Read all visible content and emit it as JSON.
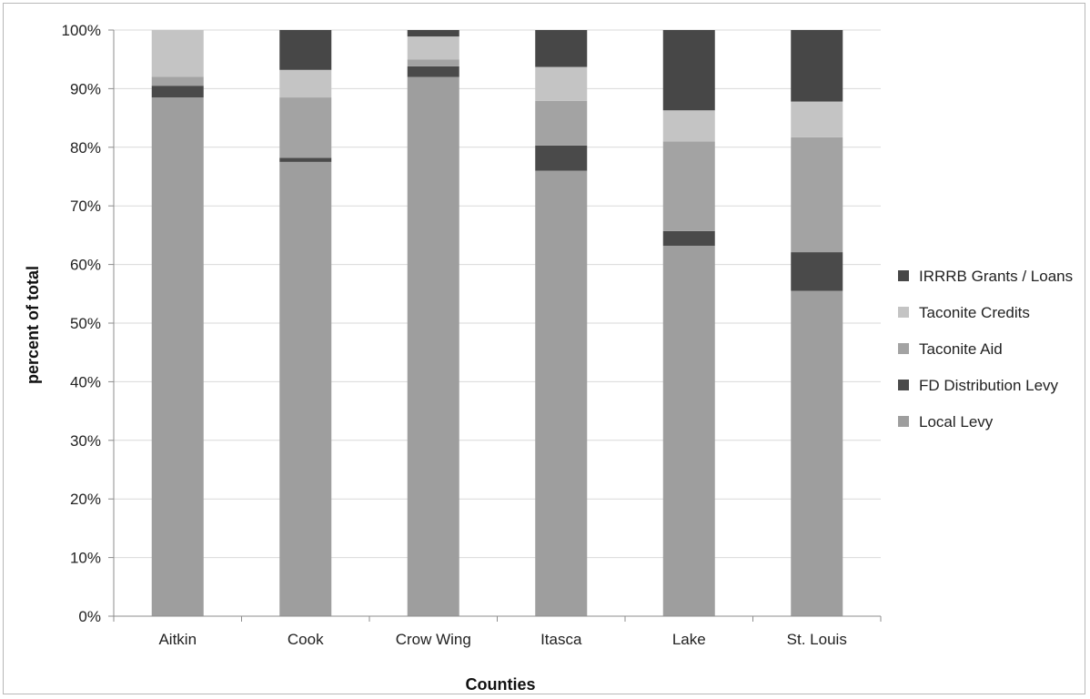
{
  "chart_data": {
    "type": "bar",
    "stacked": true,
    "percent": true,
    "categories": [
      "Aitkin",
      "Cook",
      "Crow Wing",
      "Itasca",
      "Lake",
      "St. Louis"
    ],
    "series": [
      {
        "name": "Local Levy",
        "color": "#9e9e9e",
        "values": [
          88.5,
          77.5,
          92.0,
          76.0,
          63.2,
          55.5
        ]
      },
      {
        "name": "FD Distribution Levy",
        "color": "#4a4a4a",
        "values": [
          2.0,
          0.7,
          1.8,
          4.3,
          2.5,
          6.6
        ]
      },
      {
        "name": "Taconite Aid",
        "color": "#a3a3a3",
        "values": [
          1.5,
          10.3,
          1.2,
          7.6,
          15.3,
          19.6
        ]
      },
      {
        "name": "Taconite Credits",
        "color": "#c4c4c4",
        "values": [
          8.0,
          4.7,
          3.9,
          5.8,
          5.3,
          6.1
        ]
      },
      {
        "name": "IRRRB Grants / Loans",
        "color": "#474747",
        "values": [
          0.0,
          6.8,
          1.1,
          6.3,
          13.7,
          12.2
        ]
      }
    ],
    "xlabel": "Counties",
    "ylabel": "percent of total",
    "ylim": [
      0,
      100
    ],
    "yticks": [
      "0%",
      "10%",
      "20%",
      "30%",
      "40%",
      "50%",
      "60%",
      "70%",
      "80%",
      "90%",
      "100%"
    ],
    "grid": true,
    "legend_position": "right"
  }
}
